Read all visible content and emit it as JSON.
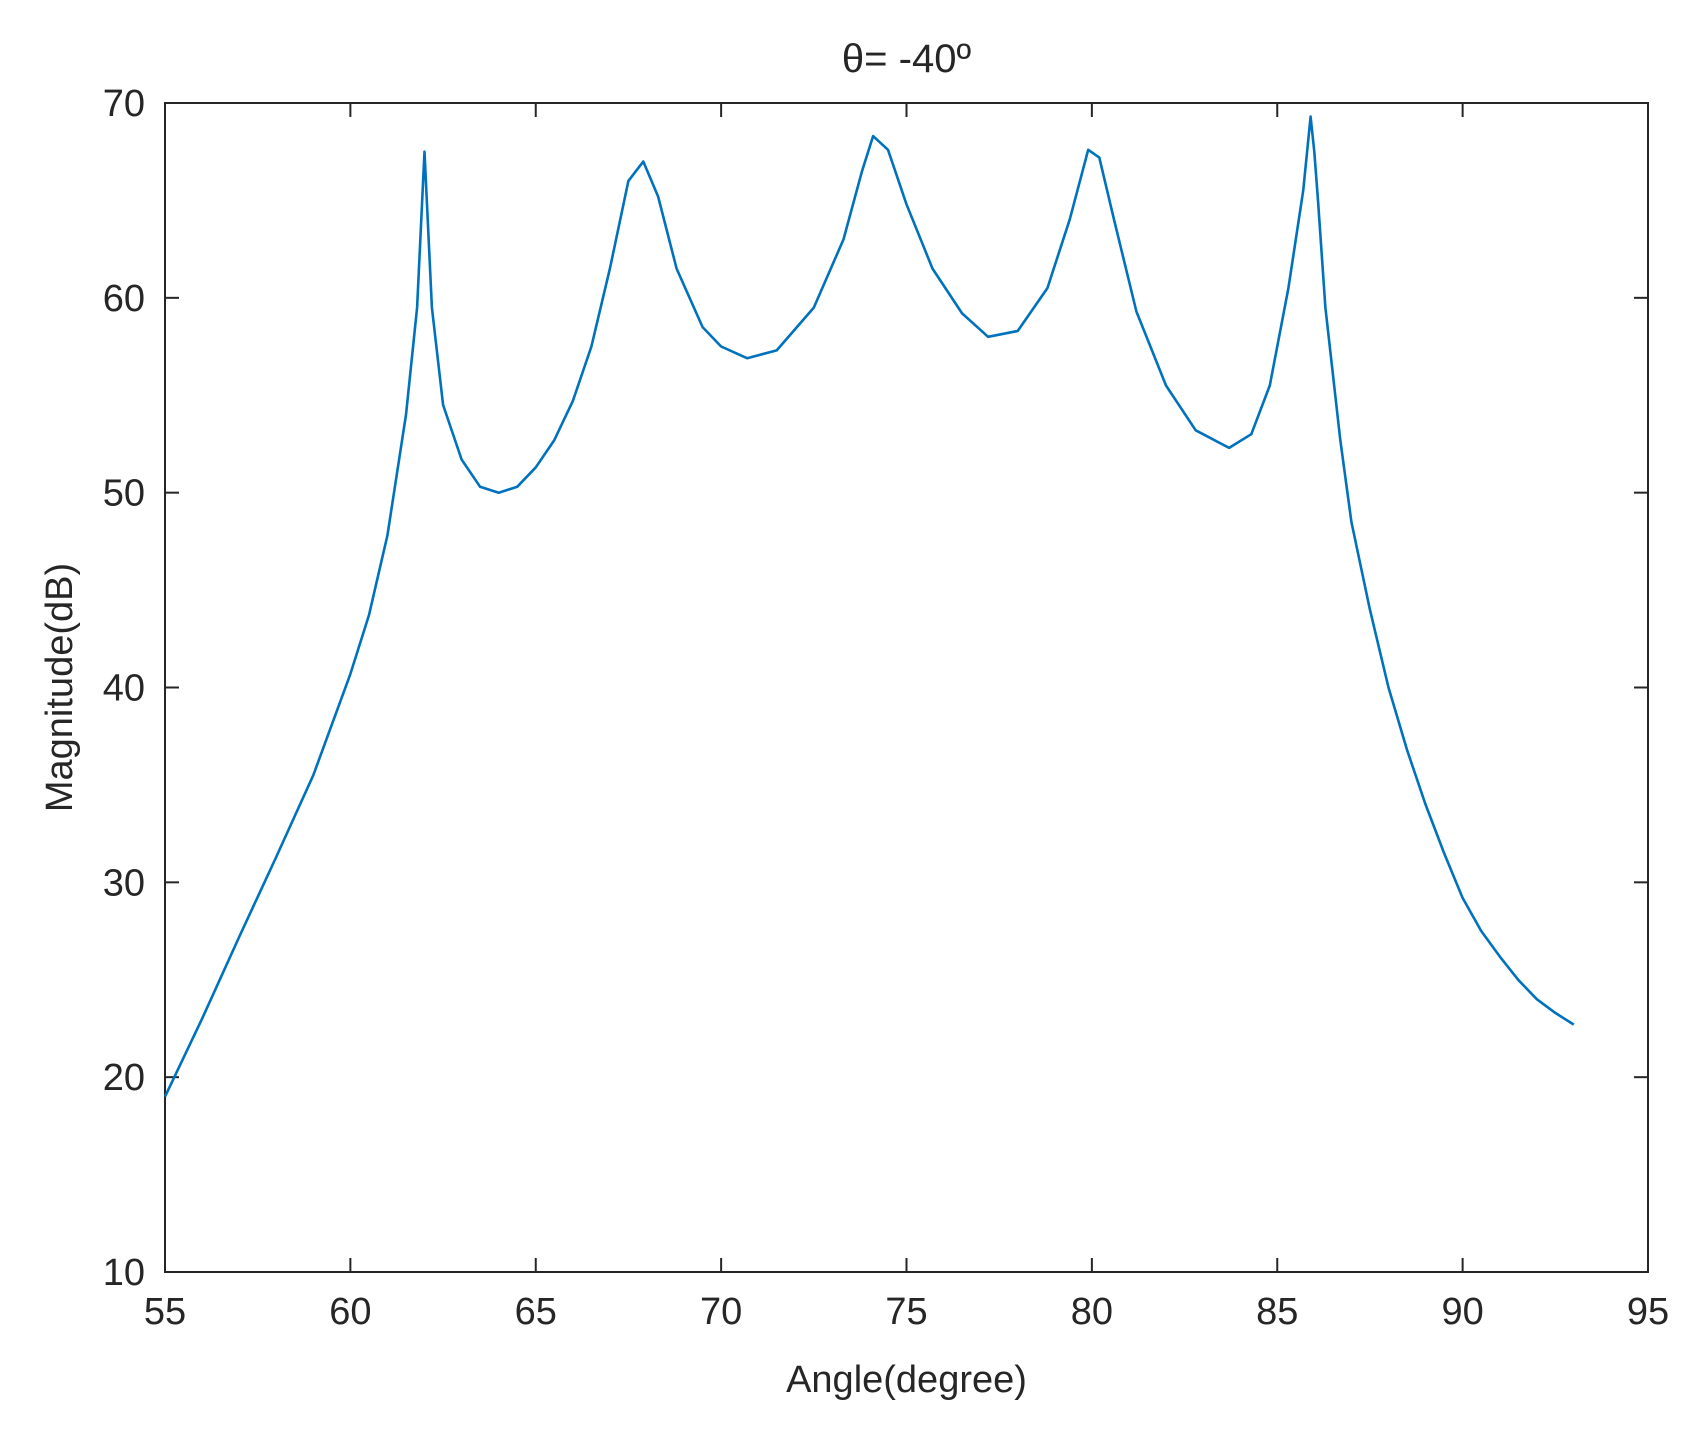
{
  "chart_data": {
    "type": "line",
    "title": "θ= -40º",
    "xlabel": "Angle(degree)",
    "ylabel": "Magnitude(dB)",
    "xlim": [
      55,
      95
    ],
    "ylim": [
      10,
      70
    ],
    "xticks": [
      55,
      60,
      65,
      70,
      75,
      80,
      85,
      90,
      95
    ],
    "yticks": [
      10,
      20,
      30,
      40,
      50,
      60,
      70
    ],
    "grid": false,
    "line_color": "#0072BD",
    "series": [
      {
        "x": [
          55,
          56,
          57,
          58,
          59,
          60,
          60.5,
          61,
          61.5,
          61.8,
          62,
          62.2,
          62.5,
          63,
          63.5,
          64,
          64.5,
          65,
          65.5,
          66,
          66.5,
          67,
          67.5,
          67.9,
          68.3,
          68.8,
          69.5,
          70,
          70.7,
          71.5,
          72.5,
          73.3,
          73.8,
          74.1,
          74.5,
          75,
          75.7,
          76.5,
          77.2,
          78,
          78.8,
          79.4,
          79.9,
          80.2,
          80.6,
          81.2,
          82,
          82.8,
          83.7,
          84.3,
          84.8,
          85.3,
          85.7,
          85.9,
          86,
          86.1,
          86.3,
          86.7,
          87,
          87.5,
          88,
          88.5,
          89,
          89.5,
          90,
          90.5,
          91,
          91.5,
          92,
          92.5,
          93
        ],
        "y": [
          19,
          23,
          27.2,
          31.3,
          35.5,
          40.7,
          43.7,
          47.8,
          54,
          59.5,
          67.5,
          59.5,
          54.5,
          51.7,
          50.3,
          50,
          50.3,
          51.3,
          52.7,
          54.7,
          57.5,
          61.5,
          66,
          67,
          65.2,
          61.5,
          58.5,
          57.5,
          56.9,
          57.3,
          59.5,
          63,
          66.5,
          68.3,
          67.6,
          64.8,
          61.5,
          59.2,
          58,
          58.3,
          60.5,
          64,
          67.6,
          67.2,
          64,
          59.3,
          55.5,
          53.2,
          52.3,
          53,
          55.5,
          60.5,
          65.5,
          69.3,
          67.5,
          65,
          59.5,
          52.7,
          48.5,
          44,
          40,
          36.8,
          34,
          31.5,
          29.2,
          27.5,
          26.2,
          25,
          24,
          23.3,
          22.7
        ]
      }
    ]
  }
}
